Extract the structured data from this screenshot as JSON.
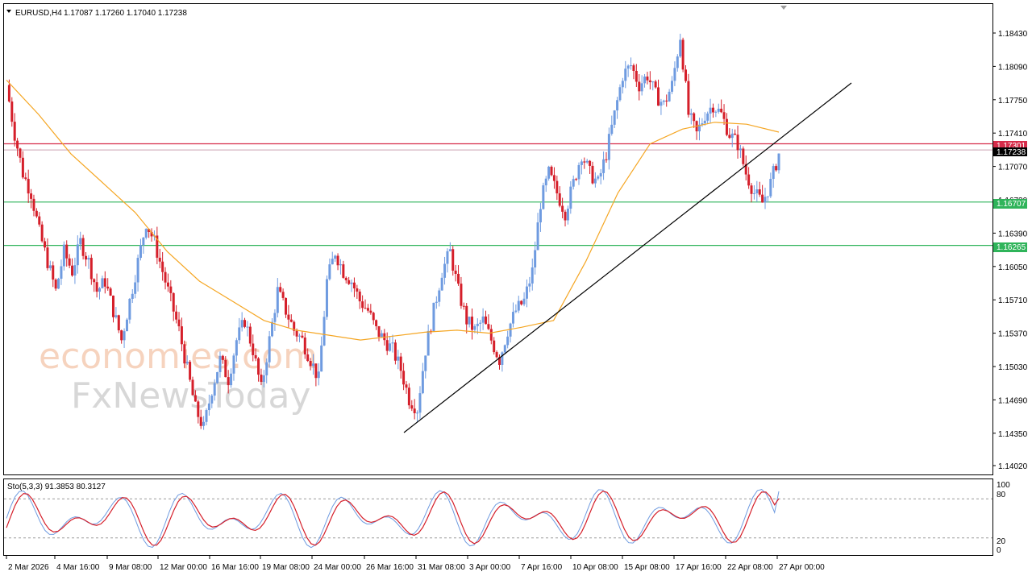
{
  "header": {
    "symbol_label": "EURUSD,H4",
    "ohlc_label": "1.17087 1.17260 1.17040 1.17238"
  },
  "stochastic": {
    "label": "Sto(5,3,3) 91.3853 80.3127",
    "levels": [
      "100",
      "80",
      "20",
      "0"
    ],
    "k_color": "#6f9be0",
    "d_color": "#d51f2a"
  },
  "watermark": {
    "line1": "economies.com",
    "line2": "FxNewsToday"
  },
  "price_labels": {
    "resistance": "1.17301",
    "current": "1.17238",
    "support1": "1.16707",
    "support2": "1.16265"
  },
  "colors": {
    "bull": "#6f9be0",
    "bear": "#d51f2a",
    "ma": "#f5a623",
    "resistance": "#d62c4a",
    "support": "#2fb45a",
    "trendline": "#000000"
  },
  "chart_data": {
    "type": "candlestick",
    "symbol": "EURUSD",
    "timeframe": "H4",
    "y_ticks": [
      "1.18430",
      "1.18090",
      "1.17750",
      "1.17410",
      "1.17070",
      "1.16730",
      "1.16390",
      "1.16050",
      "1.15710",
      "1.15370",
      "1.15030",
      "1.14690",
      "1.14350",
      "1.14020"
    ],
    "ylim": [
      1.1402,
      1.1878
    ],
    "x_ticks": [
      "2 Mar 2026",
      "4 Mar 16:00",
      "9 Mar 08:00",
      "12 Mar 00:00",
      "16 Mar 16:00",
      "19 Mar 08:00",
      "24 Mar 00:00",
      "26 Mar 16:00",
      "31 Mar 08:00",
      "3 Apr 00:00",
      "7 Apr 16:00",
      "10 Apr 08:00",
      "15 Apr 08:00",
      "17 Apr 16:00",
      "22 Apr 08:00",
      "27 Apr 00:00"
    ],
    "horizontal_levels": [
      {
        "price": 1.17301,
        "kind": "resistance"
      },
      {
        "price": 1.16707,
        "kind": "support"
      },
      {
        "price": 1.16265,
        "kind": "support"
      }
    ],
    "trendline": [
      {
        "x": "26 Mar 16:00",
        "y": 1.1445
      },
      {
        "x": "27 Apr 00:00",
        "y": 1.1795
      }
    ],
    "close_path": [
      1.179,
      1.174,
      1.17,
      1.168,
      1.164,
      1.161,
      1.158,
      1.162,
      1.16,
      1.163,
      1.161,
      1.158,
      1.159,
      1.156,
      1.153,
      1.157,
      1.161,
      1.165,
      1.163,
      1.16,
      1.157,
      1.154,
      1.15,
      1.146,
      1.144,
      1.148,
      1.151,
      1.149,
      1.153,
      1.155,
      1.152,
      1.148,
      1.153,
      1.158,
      1.156,
      1.154,
      1.153,
      1.151,
      1.149,
      1.159,
      1.162,
      1.16,
      1.159,
      1.157,
      1.156,
      1.154,
      1.153,
      1.152,
      1.15,
      1.147,
      1.146,
      1.152,
      1.156,
      1.16,
      1.162,
      1.158,
      1.155,
      1.154,
      1.155,
      1.153,
      1.151,
      1.154,
      1.156,
      1.157,
      1.16,
      1.167,
      1.17,
      1.168,
      1.166,
      1.169,
      1.172,
      1.17,
      1.169,
      1.172,
      1.176,
      1.18,
      1.181,
      1.179,
      1.18,
      1.178,
      1.177,
      1.179,
      1.184,
      1.176,
      1.174,
      1.176,
      1.177,
      1.176,
      1.174,
      1.173,
      1.17,
      1.168,
      1.167,
      1.169,
      1.172
    ],
    "ma_path": [
      1.1795,
      1.176,
      1.172,
      1.169,
      1.166,
      1.162,
      1.159,
      1.157,
      1.155,
      1.154,
      1.1535,
      1.153,
      1.1534,
      1.1538,
      1.154,
      1.1537,
      1.1543,
      1.155,
      1.161,
      1.168,
      1.173,
      1.1745,
      1.1752,
      1.175,
      1.1742
    ]
  }
}
